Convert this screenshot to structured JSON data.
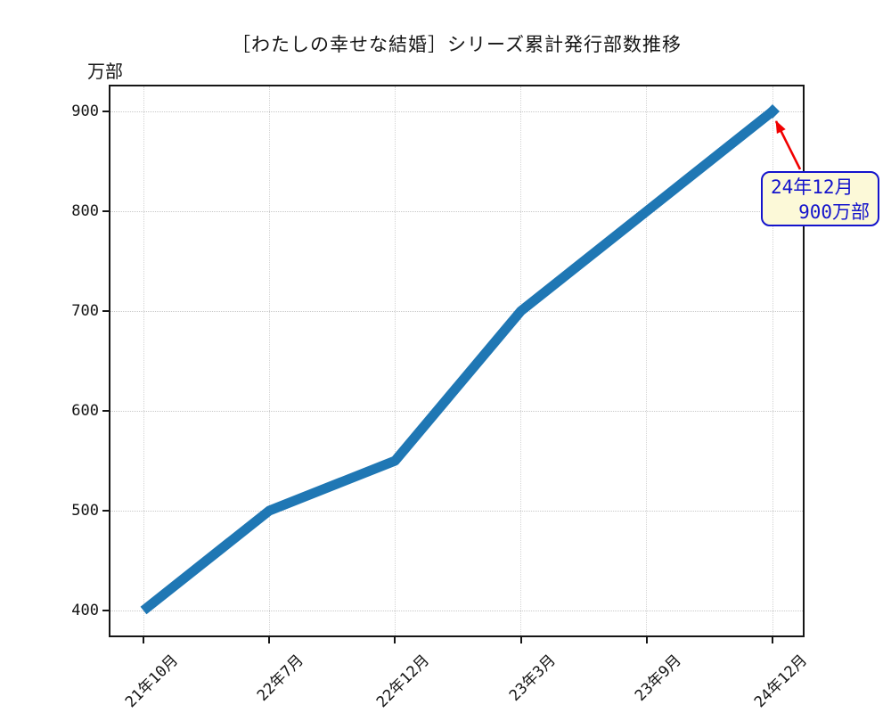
{
  "figure": {
    "title": "［わたしの幸せな結婚］シリーズ累計発行部数推移"
  },
  "chart_data": {
    "type": "line",
    "title": "［わたしの幸せな結婚］シリーズ累計発行部数推移",
    "xlabel": "",
    "ylabel": "万部",
    "categories": [
      "21年10月",
      "22年7月",
      "22年12月",
      "23年3月",
      "23年9月",
      "24年12月"
    ],
    "values": [
      400,
      500,
      550,
      700,
      800,
      900
    ],
    "yticks": [
      400,
      500,
      600,
      700,
      800,
      900
    ],
    "ylim": [
      375,
      925
    ],
    "grid": true,
    "legend": "none",
    "line_color": "#1f77b4",
    "line_width": 11,
    "end_marker": "diamond",
    "annotation": {
      "line1": "24年12月",
      "line2": "900万部",
      "target_category": "24年12月",
      "target_value": 900,
      "text_color": "#1414cc",
      "border_color": "#1414cc",
      "bg_color": "#fcf9d8",
      "arrow_color": "#f10000"
    }
  }
}
